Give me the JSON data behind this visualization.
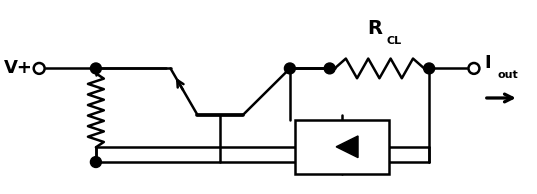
{
  "fig_width": 5.37,
  "fig_height": 1.94,
  "dpi": 100,
  "bg_color": "#ffffff",
  "line_color": "#000000",
  "line_width": 1.8,
  "vplus_label": "V+",
  "iout_label": "I",
  "iout_sub": "out",
  "rcl_label": "R",
  "rcl_sub": "CL"
}
